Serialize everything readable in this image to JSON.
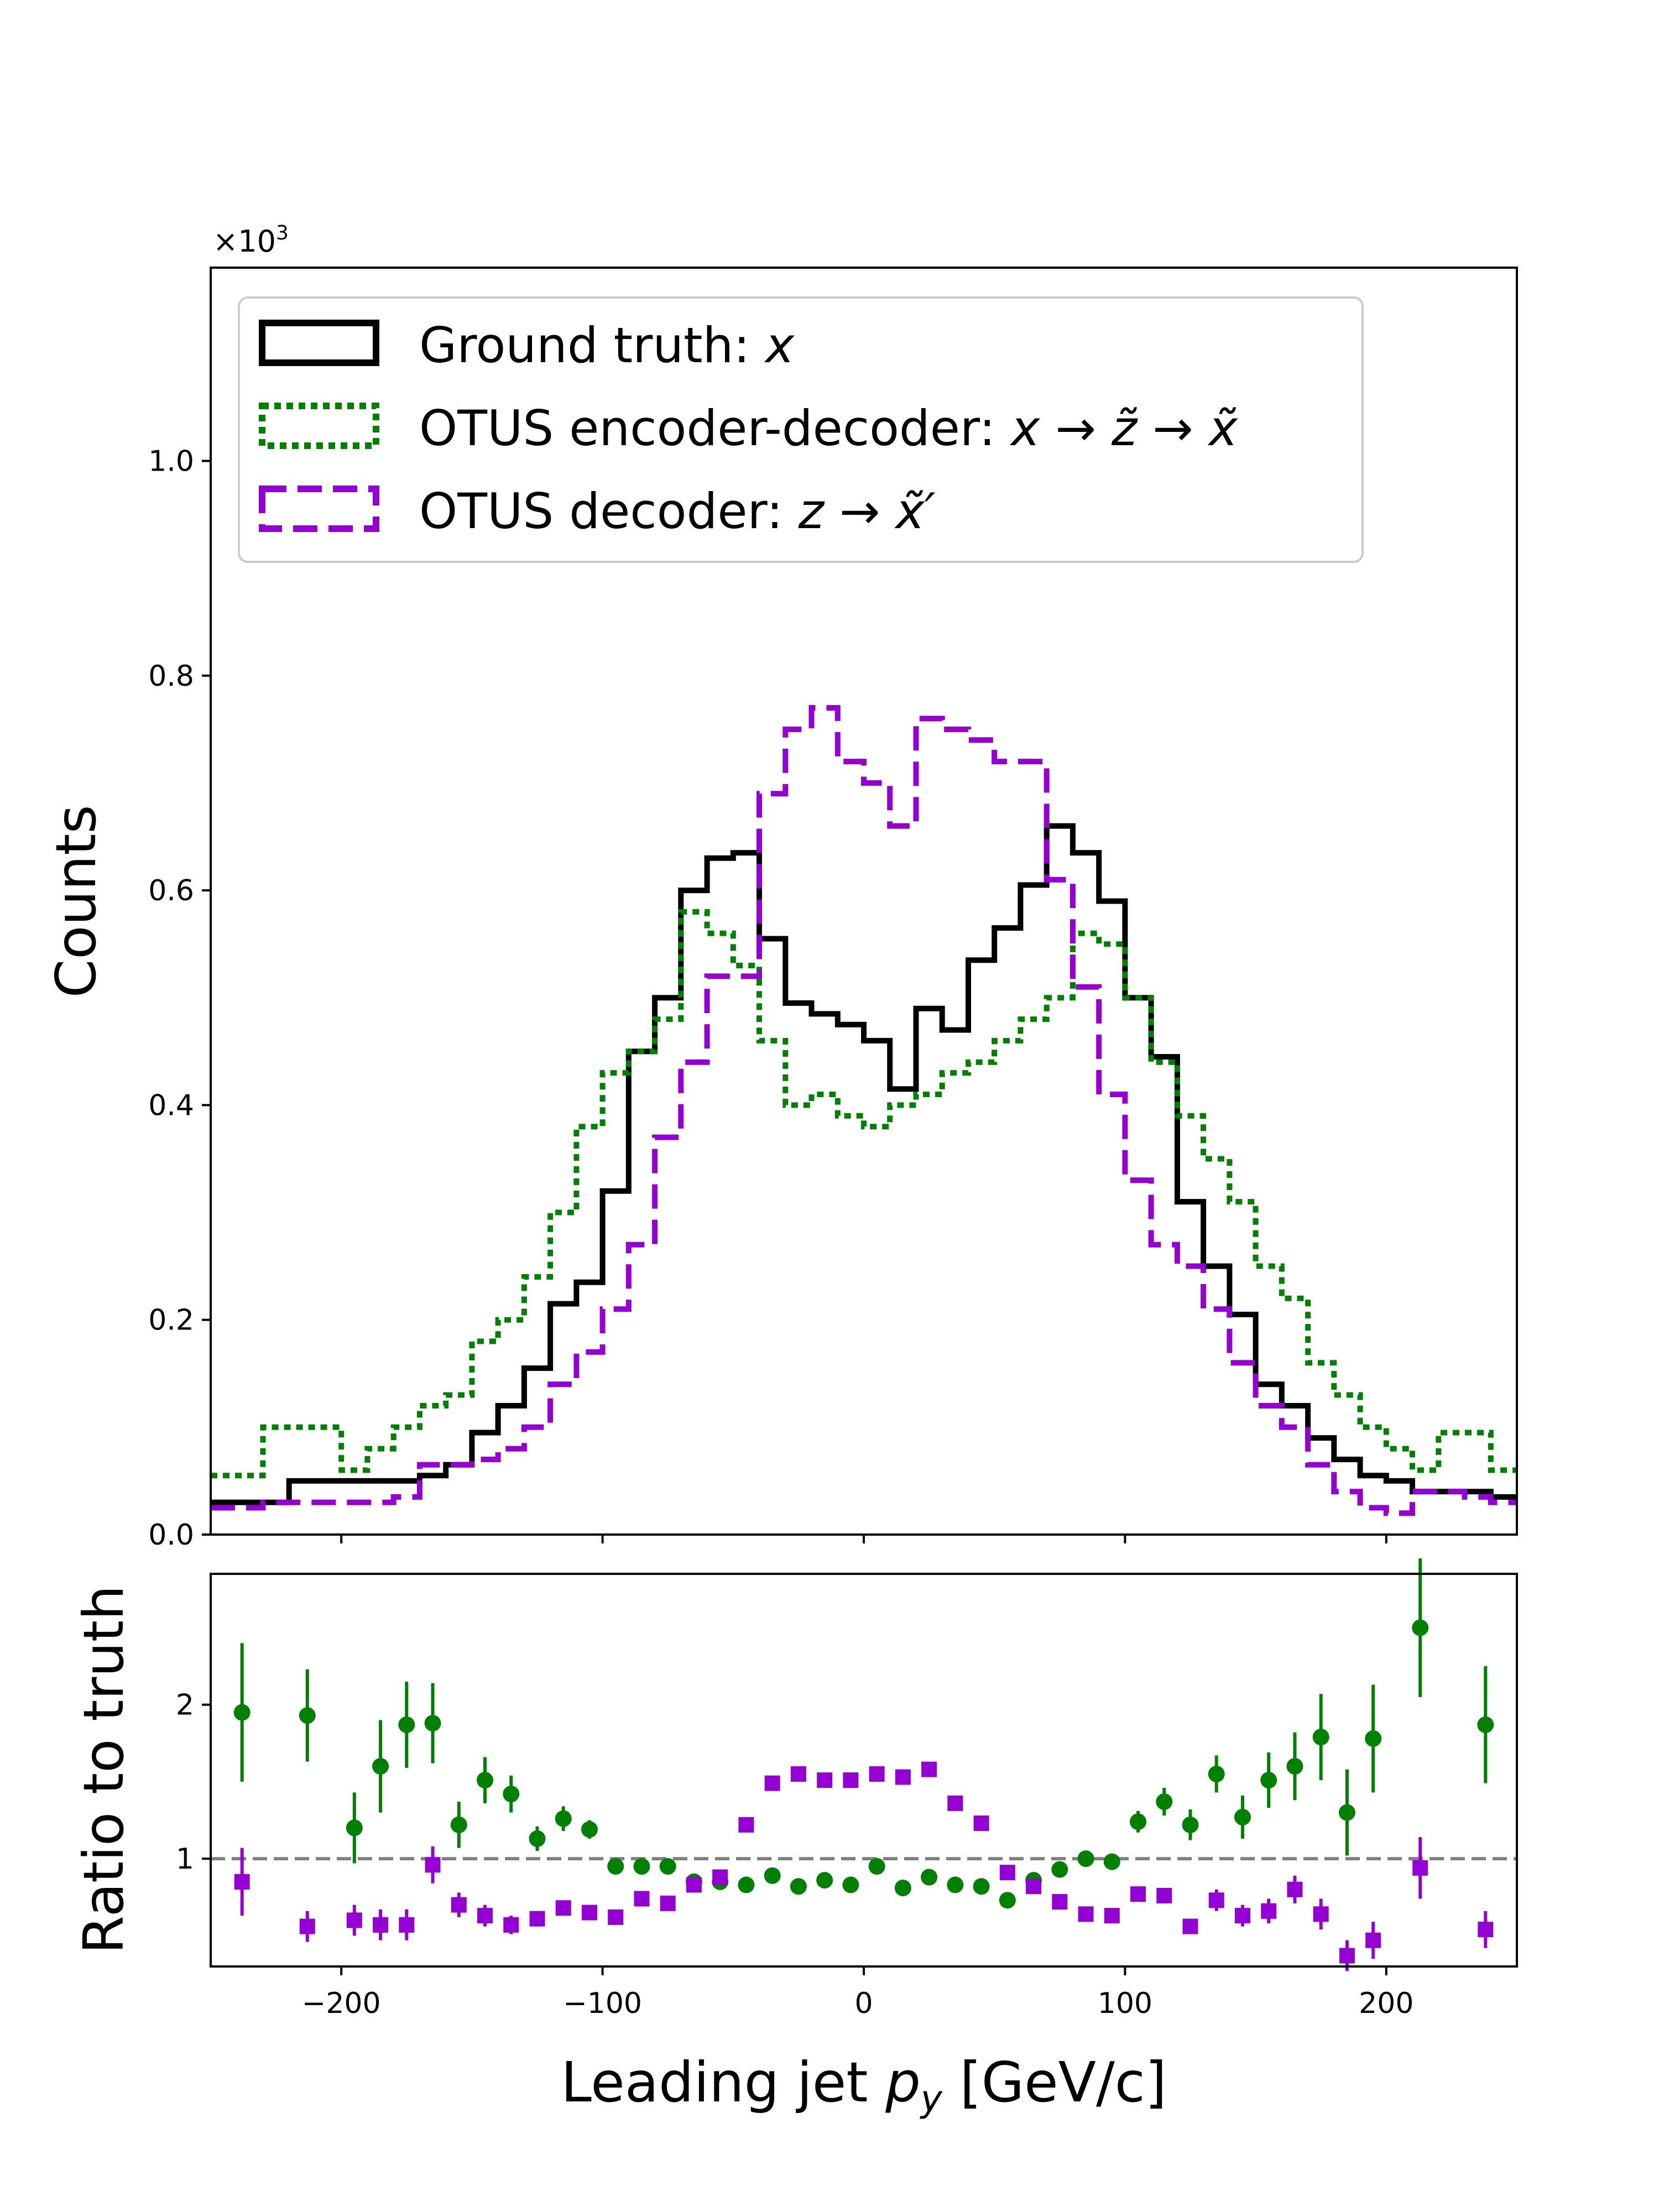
{
  "chart_data": [
    {
      "type": "step-histogram",
      "panel": "main",
      "ylabel": "Counts",
      "multiplier": "×10",
      "multiplier_exp": "3",
      "ylim": [
        0,
        1.18
      ],
      "yticks": [
        0.0,
        0.2,
        0.4,
        0.6,
        0.8,
        1.0
      ],
      "ytick_labels": [
        "0.0",
        "0.2",
        "0.4",
        "0.6",
        "0.8",
        "1.0"
      ],
      "xlim": [
        -250,
        250
      ],
      "bin_edges": [
        -250,
        -240,
        -230,
        -220,
        -210,
        -200,
        -190,
        -180,
        -170,
        -160,
        -150,
        -140,
        -130,
        -120,
        -110,
        -100,
        -90,
        -80,
        -70,
        -60,
        -50,
        -40,
        -30,
        -20,
        -10,
        0,
        10,
        20,
        30,
        40,
        50,
        60,
        70,
        80,
        90,
        100,
        110,
        120,
        130,
        140,
        150,
        160,
        170,
        180,
        190,
        200,
        210,
        220,
        230,
        240,
        250
      ],
      "legend_position": "upper-left",
      "series": [
        {
          "legend_prefix": "Ground truth: ",
          "legend_math": "x",
          "style": "solid",
          "color": "#000000",
          "values": [
            0.03,
            0.03,
            0.03,
            0.05,
            0.05,
            0.05,
            0.05,
            0.05,
            0.055,
            0.065,
            0.095,
            0.12,
            0.155,
            0.215,
            0.235,
            0.32,
            0.45,
            0.5,
            0.6,
            0.63,
            0.635,
            0.555,
            0.495,
            0.485,
            0.475,
            0.46,
            0.415,
            0.49,
            0.47,
            0.535,
            0.565,
            0.605,
            0.66,
            0.635,
            0.59,
            0.5,
            0.445,
            0.31,
            0.25,
            0.205,
            0.14,
            0.12,
            0.09,
            0.07,
            0.055,
            0.05,
            0.04,
            0.04,
            0.04,
            0.035
          ]
        },
        {
          "legend_prefix": "OTUS encoder-decoder: ",
          "legend_math": "x → z̃ → x̃",
          "style": "dotted",
          "color": "#008000",
          "values": [
            0.055,
            0.055,
            0.1,
            0.1,
            0.1,
            0.06,
            0.08,
            0.1,
            0.12,
            0.13,
            0.18,
            0.2,
            0.24,
            0.3,
            0.38,
            0.43,
            0.45,
            0.48,
            0.58,
            0.56,
            0.53,
            0.46,
            0.4,
            0.41,
            0.39,
            0.38,
            0.4,
            0.41,
            0.43,
            0.44,
            0.46,
            0.48,
            0.5,
            0.56,
            0.55,
            0.5,
            0.44,
            0.39,
            0.35,
            0.31,
            0.25,
            0.22,
            0.16,
            0.13,
            0.1,
            0.08,
            0.06,
            0.095,
            0.095,
            0.06
          ]
        },
        {
          "legend_prefix": "OTUS decoder: ",
          "legend_math": "z → x̃′",
          "style": "dashed",
          "color": "#9400d3",
          "values": [
            0.025,
            0.025,
            0.03,
            0.03,
            0.03,
            0.03,
            0.03,
            0.035,
            0.065,
            0.065,
            0.07,
            0.08,
            0.1,
            0.14,
            0.17,
            0.21,
            0.27,
            0.37,
            0.44,
            0.52,
            0.52,
            0.69,
            0.75,
            0.77,
            0.72,
            0.7,
            0.66,
            0.76,
            0.75,
            0.74,
            0.72,
            0.72,
            0.61,
            0.51,
            0.41,
            0.33,
            0.27,
            0.25,
            0.21,
            0.16,
            0.12,
            0.1,
            0.065,
            0.04,
            0.025,
            0.02,
            0.04,
            0.04,
            0.035,
            0.03
          ]
        }
      ]
    },
    {
      "type": "errorbar-scatter",
      "panel": "ratio",
      "ylabel": "Ratio to truth",
      "xlabel_prefix": "Leading jet ",
      "xlabel_math_base": "p",
      "xlabel_math_sub": "y",
      "xlabel_suffix": " [GeV/c]",
      "xlim": [
        -250,
        250
      ],
      "ylim": [
        0.3,
        2.85
      ],
      "xticks": [
        -200,
        -100,
        0,
        100,
        200
      ],
      "xtick_labels": [
        "−200",
        "−100",
        "0",
        "100",
        "200"
      ],
      "yticks": [
        1,
        2
      ],
      "ytick_labels": [
        "1",
        "2"
      ],
      "reference_line": 1,
      "reference_color": "#808080",
      "series": [
        {
          "name_ref": "OTUS encoder-decoder",
          "marker": "circle",
          "color": "#008000",
          "x": [
            -238,
            -213,
            -195,
            -185,
            -175,
            -165,
            -155,
            -145,
            -135,
            -125,
            -115,
            -105,
            -95,
            -85,
            -75,
            -65,
            -55,
            -45,
            -35,
            -25,
            -15,
            -5,
            5,
            15,
            25,
            35,
            45,
            55,
            65,
            75,
            85,
            95,
            105,
            115,
            125,
            135,
            145,
            155,
            165,
            175,
            185,
            195,
            213,
            238
          ],
          "y": [
            1.95,
            1.93,
            1.2,
            1.6,
            1.87,
            1.88,
            1.22,
            1.51,
            1.42,
            1.13,
            1.26,
            1.19,
            0.95,
            0.95,
            0.95,
            0.85,
            0.85,
            0.83,
            0.89,
            0.82,
            0.86,
            0.83,
            0.95,
            0.81,
            0.88,
            0.83,
            0.82,
            0.73,
            0.86,
            0.93,
            1.0,
            0.98,
            1.24,
            1.37,
            1.22,
            1.55,
            1.27,
            1.51,
            1.6,
            1.79,
            1.3,
            1.78,
            2.5,
            1.87
          ],
          "yerr": [
            0.45,
            0.3,
            0.23,
            0.3,
            0.28,
            0.26,
            0.15,
            0.15,
            0.12,
            0.08,
            0.08,
            0.06,
            0.05,
            0.04,
            0.04,
            0.03,
            0.03,
            0.03,
            0.03,
            0.03,
            0.03,
            0.03,
            0.03,
            0.03,
            0.03,
            0.03,
            0.03,
            0.03,
            0.03,
            0.04,
            0.04,
            0.05,
            0.07,
            0.09,
            0.1,
            0.12,
            0.14,
            0.18,
            0.22,
            0.28,
            0.28,
            0.35,
            0.45,
            0.38
          ]
        },
        {
          "name_ref": "OTUS decoder",
          "marker": "square",
          "color": "#9400d3",
          "x": [
            -238,
            -213,
            -195,
            -185,
            -175,
            -165,
            -155,
            -145,
            -135,
            -125,
            -115,
            -105,
            -95,
            -85,
            -75,
            -65,
            -55,
            -45,
            -35,
            -25,
            -15,
            -5,
            5,
            15,
            25,
            35,
            45,
            55,
            65,
            75,
            85,
            95,
            105,
            115,
            125,
            135,
            145,
            155,
            165,
            175,
            185,
            195,
            213,
            238
          ],
          "y": [
            0.85,
            0.56,
            0.6,
            0.57,
            0.57,
            0.96,
            0.7,
            0.63,
            0.57,
            0.61,
            0.68,
            0.65,
            0.62,
            0.74,
            0.71,
            0.83,
            0.88,
            1.22,
            1.49,
            1.55,
            1.51,
            1.51,
            1.55,
            1.53,
            1.58,
            1.36,
            1.23,
            0.91,
            0.82,
            0.72,
            0.64,
            0.63,
            0.77,
            0.76,
            0.56,
            0.73,
            0.63,
            0.66,
            0.8,
            0.64,
            0.37,
            0.47,
            0.94,
            0.54
          ],
          "yerr": [
            0.22,
            0.1,
            0.1,
            0.1,
            0.1,
            0.12,
            0.08,
            0.07,
            0.06,
            0.05,
            0.04,
            0.04,
            0.03,
            0.03,
            0.03,
            0.03,
            0.03,
            0.03,
            0.04,
            0.04,
            0.04,
            0.04,
            0.04,
            0.04,
            0.04,
            0.04,
            0.03,
            0.03,
            0.03,
            0.03,
            0.03,
            0.03,
            0.04,
            0.05,
            0.05,
            0.07,
            0.07,
            0.08,
            0.09,
            0.1,
            0.1,
            0.12,
            0.2,
            0.12
          ]
        }
      ]
    }
  ]
}
